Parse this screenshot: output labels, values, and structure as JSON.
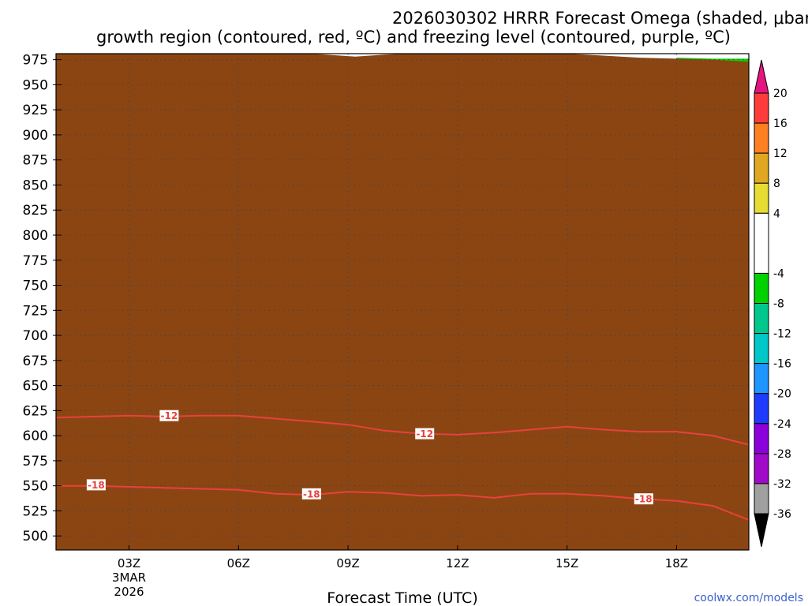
{
  "chart_data": {
    "type": "heatmap",
    "title_line1": "2026030302 HRRR Forecast Omega (shaded, μbar/s) for KMSV with dendritic snow",
    "title_line2": "growth region (contoured, red, ºC) and freezing level (contoured, purple, ºC)",
    "xlabel": "Forecast Time (UTC)",
    "ylabel": "Pressure (hPa)",
    "credit": "coolwx.com/models",
    "x_range_hours": [
      1.0,
      19.98
    ],
    "y_range_hpa": [
      981,
      486
    ],
    "x_ticks": [
      {
        "hour": 3,
        "label": "03Z",
        "sub1": "3MAR",
        "sub2": "2026"
      },
      {
        "hour": 6,
        "label": "06Z"
      },
      {
        "hour": 9,
        "label": "09Z"
      },
      {
        "hour": 12,
        "label": "12Z"
      },
      {
        "hour": 15,
        "label": "15Z"
      },
      {
        "hour": 18,
        "label": "18Z"
      }
    ],
    "y_ticks": [
      500,
      525,
      550,
      575,
      600,
      625,
      650,
      675,
      700,
      725,
      750,
      775,
      800,
      825,
      850,
      875,
      900,
      925,
      950,
      975
    ],
    "colorbar": {
      "labels": [
        "20",
        "16",
        "12",
        "8",
        "4",
        "-4",
        "-8",
        "-12",
        "-16",
        "-20",
        "-24",
        "-28",
        "-32",
        "-36"
      ],
      "bins": [
        {
          "from": 16,
          "to": 20,
          "color": "#ff3c3c"
        },
        {
          "from": 12,
          "to": 16,
          "color": "#ff8022"
        },
        {
          "from": 8,
          "to": 12,
          "color": "#e0a822"
        },
        {
          "from": 4,
          "to": 8,
          "color": "#e6dc32"
        },
        {
          "from": -4,
          "to": 4,
          "color": "#ffffff"
        },
        {
          "from": -8,
          "to": -4,
          "color": "#00d200"
        },
        {
          "from": -12,
          "to": -8,
          "color": "#00c88c"
        },
        {
          "from": -16,
          "to": -12,
          "color": "#00c8c8"
        },
        {
          "from": -20,
          "to": -16,
          "color": "#1e96ff"
        },
        {
          "from": -24,
          "to": -20,
          "color": "#1e3cff"
        },
        {
          "from": -28,
          "to": -24,
          "color": "#8c00dc"
        },
        {
          "from": -32,
          "to": -28,
          "color": "#a00ac8"
        },
        {
          "from": -36,
          "to": -32,
          "color": "#a0a0a0"
        }
      ],
      "top_arrow_color": "#e6147e",
      "bottom_arrow_color": "#000000"
    },
    "omega_regions": [
      {
        "name": "rising-omega-region",
        "color": "#e6dc32",
        "points": [
          [
            1.6,
            486
          ],
          [
            2.1,
            486
          ],
          [
            2.6,
            566
          ],
          [
            2.98,
            627
          ],
          [
            3.2,
            681
          ],
          [
            3.3,
            753
          ],
          [
            3.25,
            800
          ],
          [
            3.1,
            815
          ],
          [
            3.0,
            850
          ],
          [
            2.6,
            874
          ],
          [
            1.95,
            885
          ],
          [
            1.65,
            876
          ],
          [
            1.6,
            825
          ],
          [
            1.6,
            770
          ],
          [
            1.6,
            600
          ]
        ]
      },
      {
        "name": "rising-omega-region",
        "color": "#e6dc32",
        "points": [
          [
            6.55,
            536
          ],
          [
            6.8,
            512
          ],
          [
            7.05,
            504
          ],
          [
            7.3,
            532
          ],
          [
            7.25,
            568
          ],
          [
            7.15,
            590
          ],
          [
            7.0,
            614
          ],
          [
            6.9,
            590
          ],
          [
            6.75,
            562
          ]
        ]
      },
      {
        "name": "rising-omega-region",
        "color": "#e6dc32",
        "points": [
          [
            9.65,
            709
          ],
          [
            9.75,
            672
          ],
          [
            9.9,
            648
          ],
          [
            10.05,
            665
          ],
          [
            10.0,
            710
          ],
          [
            9.9,
            740
          ],
          [
            9.75,
            734
          ]
        ]
      },
      {
        "name": "rising-omega-region",
        "color": "#e6dc32",
        "points": [
          [
            11.75,
            575
          ],
          [
            11.85,
            552
          ],
          [
            12.0,
            529
          ],
          [
            12.1,
            547
          ],
          [
            12.2,
            575
          ],
          [
            12.25,
            600
          ],
          [
            12.3,
            614
          ],
          [
            12.0,
            615
          ],
          [
            11.8,
            595
          ]
        ]
      },
      {
        "name": "rising-omega-region",
        "color": "#e6dc32",
        "points": [
          [
            12.45,
            618
          ],
          [
            12.95,
            618
          ],
          [
            13.25,
            665
          ],
          [
            12.95,
            700
          ],
          [
            12.7,
            674
          ],
          [
            12.5,
            655
          ]
        ]
      },
      {
        "name": "rising-omega-region",
        "color": "#e6dc32",
        "points": [
          [
            14.7,
            569
          ],
          [
            14.85,
            535
          ],
          [
            15.0,
            505
          ],
          [
            15.1,
            535
          ],
          [
            15.1,
            575
          ],
          [
            15.0,
            598
          ],
          [
            14.95,
            612
          ],
          [
            14.85,
            600
          ],
          [
            14.75,
            585
          ]
        ]
      },
      {
        "name": "sinking-omega-region",
        "color": "#00d200",
        "points": [
          [
            1.95,
            946
          ],
          [
            2.0,
            935
          ],
          [
            2.5,
            933
          ],
          [
            3.0,
            938
          ],
          [
            3.5,
            941
          ],
          [
            4.0,
            944
          ],
          [
            4.95,
            943
          ],
          [
            5.3,
            950
          ],
          [
            5.95,
            954
          ],
          [
            5.3,
            960
          ],
          [
            4.9,
            964
          ],
          [
            4.2,
            958
          ],
          [
            3.9,
            955
          ],
          [
            3.45,
            962
          ],
          [
            2.9,
            972
          ],
          [
            2.4,
            972
          ],
          [
            2.0,
            965
          ]
        ]
      },
      {
        "name": "sinking-omega-region",
        "color": "#00d200",
        "points": [
          [
            9.4,
            940
          ],
          [
            9.55,
            922
          ],
          [
            9.8,
            900
          ],
          [
            10.0,
            882
          ],
          [
            10.8,
            887
          ],
          [
            11.6,
            905
          ],
          [
            11.95,
            921
          ],
          [
            12.5,
            901
          ],
          [
            13.0,
            872
          ],
          [
            13.4,
            860
          ],
          [
            13.85,
            840
          ],
          [
            13.8,
            800
          ],
          [
            14.05,
            780
          ],
          [
            14.45,
            746
          ],
          [
            14.85,
            730
          ],
          [
            15.25,
            734
          ],
          [
            15.85,
            745
          ],
          [
            16.05,
            757
          ],
          [
            16.05,
            818
          ],
          [
            16.3,
            840
          ],
          [
            16.5,
            865
          ],
          [
            16.65,
            880
          ],
          [
            16.5,
            920
          ],
          [
            16.15,
            940
          ],
          [
            15.6,
            960
          ],
          [
            14.8,
            975
          ],
          [
            13.5,
            976
          ],
          [
            12.2,
            976
          ],
          [
            10.8,
            976
          ],
          [
            10.0,
            971
          ],
          [
            9.6,
            958
          ]
        ]
      },
      {
        "name": "sinking-omega-region",
        "color": "#00d200",
        "points": [
          [
            18.45,
            486
          ],
          [
            19.98,
            486
          ],
          [
            19.98,
            976
          ],
          [
            19.0,
            976
          ],
          [
            18.0,
            977
          ],
          [
            18.0,
            950
          ],
          [
            17.5,
            935
          ],
          [
            17.35,
            900
          ],
          [
            17.15,
            860
          ],
          [
            17.3,
            820
          ],
          [
            17.5,
            790
          ],
          [
            17.55,
            745
          ],
          [
            17.55,
            700
          ],
          [
            17.7,
            660
          ],
          [
            17.8,
            625
          ],
          [
            17.8,
            590
          ],
          [
            17.9,
            560
          ],
          [
            17.9,
            520
          ],
          [
            18.1,
            495
          ]
        ]
      },
      {
        "name": "sinking-omega-region",
        "color": "#00c88c",
        "points": [
          [
            18.75,
            490
          ],
          [
            19.05,
            486
          ],
          [
            19.98,
            486
          ],
          [
            19.98,
            733
          ],
          [
            19.4,
            735
          ],
          [
            18.95,
            720
          ],
          [
            18.55,
            680
          ],
          [
            18.6,
            620
          ],
          [
            18.6,
            560
          ]
        ]
      },
      {
        "name": "sinking-omega-region",
        "color": "#00c88c",
        "points": [
          [
            18.1,
            870
          ],
          [
            18.3,
            840
          ],
          [
            18.7,
            815
          ],
          [
            18.95,
            782
          ],
          [
            19.15,
            808
          ],
          [
            19.4,
            835
          ],
          [
            19.35,
            875
          ],
          [
            19.1,
            905
          ],
          [
            18.6,
            922
          ],
          [
            18.25,
            905
          ]
        ]
      },
      {
        "name": "sinking-omega-region",
        "color": "#00c8c8",
        "points": [
          [
            18.95,
            540
          ],
          [
            19.98,
            520
          ],
          [
            19.98,
            733
          ],
          [
            19.8,
            733
          ],
          [
            19.4,
            720
          ],
          [
            19.1,
            690
          ],
          [
            18.95,
            630
          ],
          [
            18.95,
            580
          ]
        ]
      },
      {
        "name": "sinking-omega-region",
        "color": "#1e96ff",
        "points": [
          [
            19.0,
            573
          ],
          [
            19.15,
            565
          ],
          [
            19.25,
            580
          ],
          [
            19.15,
            600
          ],
          [
            19.05,
            606
          ],
          [
            18.99,
            592
          ]
        ]
      },
      {
        "name": "sinking-omega-region",
        "color": "#00c8c8",
        "points": [
          [
            18.85,
            870
          ],
          [
            18.92,
            847
          ],
          [
            19.0,
            840
          ],
          [
            19.1,
            865
          ],
          [
            19.0,
            890
          ],
          [
            18.9,
            885
          ]
        ]
      }
    ],
    "dgz_contours": [
      {
        "label": "-18",
        "color": "#e8413c",
        "points": [
          [
            1.0,
            550
          ],
          [
            2.0,
            550
          ],
          [
            3.0,
            549
          ],
          [
            4.0,
            548
          ],
          [
            5.0,
            547
          ],
          [
            6.0,
            546
          ],
          [
            7.0,
            542
          ],
          [
            8.0,
            541
          ],
          [
            9.0,
            544
          ],
          [
            10.0,
            543
          ],
          [
            11.0,
            540
          ],
          [
            12.0,
            541
          ],
          [
            13.0,
            538
          ],
          [
            14.0,
            542
          ],
          [
            15.0,
            542
          ],
          [
            16.0,
            540
          ],
          [
            17.0,
            537
          ],
          [
            18.0,
            535
          ],
          [
            19.0,
            530
          ],
          [
            19.98,
            516
          ]
        ],
        "label_positions": [
          [
            2.1,
            551
          ],
          [
            8.0,
            542
          ],
          [
            17.1,
            537
          ]
        ]
      },
      {
        "label": "-12",
        "color": "#e8413c",
        "points": [
          [
            1.0,
            618
          ],
          [
            2.0,
            619
          ],
          [
            3.0,
            620
          ],
          [
            4.0,
            619
          ],
          [
            5.0,
            620
          ],
          [
            6.0,
            620
          ],
          [
            7.0,
            617
          ],
          [
            8.0,
            614
          ],
          [
            9.0,
            611
          ],
          [
            10.0,
            605
          ],
          [
            11.0,
            602
          ],
          [
            12.0,
            601
          ],
          [
            13.0,
            603
          ],
          [
            14.0,
            606
          ],
          [
            15.0,
            609
          ],
          [
            16.0,
            606
          ],
          [
            17.0,
            604
          ],
          [
            18.0,
            604
          ],
          [
            19.0,
            600
          ],
          [
            19.98,
            591
          ]
        ],
        "label_positions": [
          [
            4.1,
            620
          ],
          [
            11.1,
            602
          ]
        ]
      }
    ],
    "terrain": {
      "color": "#8b4513",
      "points": [
        [
          1.0,
          985
        ],
        [
          3.0,
          985
        ],
        [
          5.0,
          985
        ],
        [
          6.0,
          984
        ],
        [
          7.0,
          983
        ],
        [
          8.0,
          981
        ],
        [
          8.8,
          979
        ],
        [
          9.2,
          978
        ],
        [
          9.6,
          979
        ],
        [
          10.0,
          980
        ],
        [
          11.0,
          982
        ],
        [
          12.0,
          983
        ],
        [
          13.0,
          982
        ],
        [
          14.0,
          981
        ],
        [
          15.0,
          981
        ],
        [
          16.0,
          979
        ],
        [
          17.0,
          977
        ],
        [
          18.0,
          976
        ],
        [
          19.0,
          975
        ],
        [
          19.98,
          973
        ]
      ]
    }
  }
}
